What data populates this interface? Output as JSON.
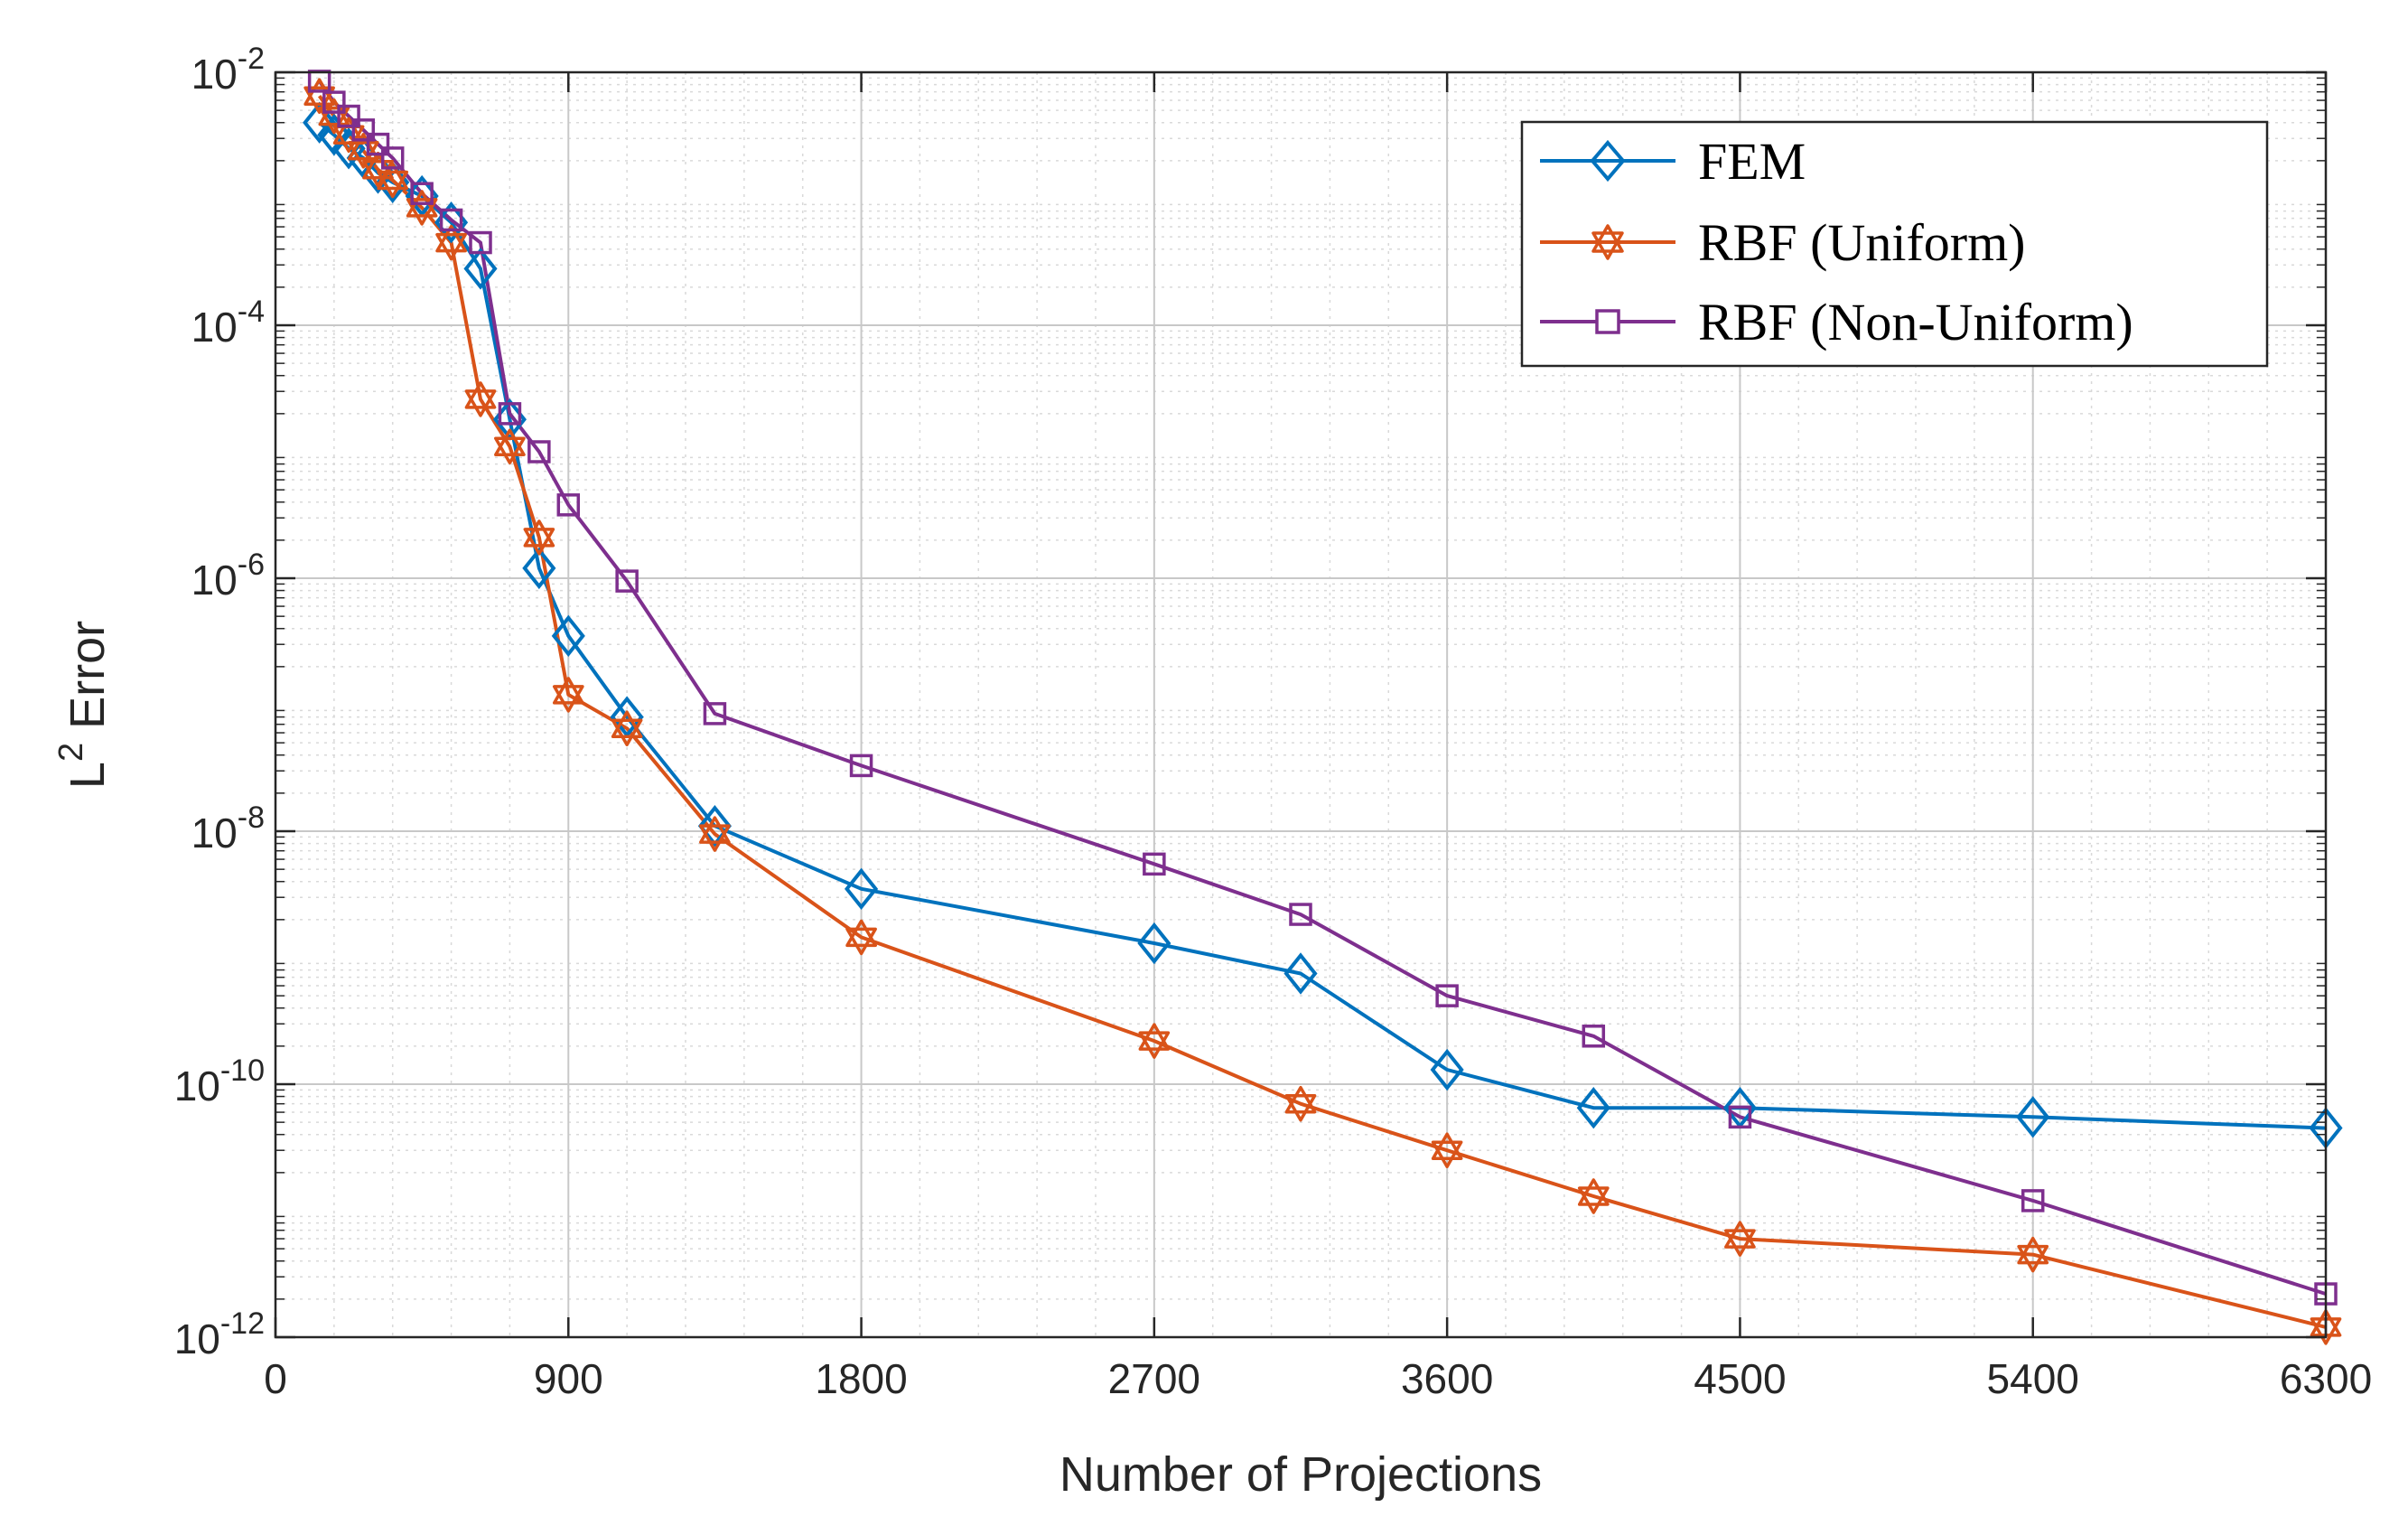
{
  "chart_data": {
    "type": "line",
    "title": "",
    "xlabel": "Number of Projections",
    "ylabel_base": "L",
    "ylabel_sup": "2",
    "ylabel_rest": " Error",
    "xscale": "linear",
    "yscale": "log",
    "xlim": [
      0,
      6300
    ],
    "ylim": [
      1e-12,
      0.01
    ],
    "xticks": [
      0,
      900,
      1800,
      2700,
      3600,
      4500,
      5400,
      6300
    ],
    "xtick_labels": [
      "0",
      "900",
      "1800",
      "2700",
      "3600",
      "4500",
      "5400",
      "6300"
    ],
    "yticks": [
      -12,
      -10,
      -8,
      -6,
      -4,
      -2
    ],
    "ytick_base": "10",
    "ytick_exponents": [
      "-12",
      "-10",
      "-8",
      "-6",
      "-4",
      "-2"
    ],
    "grid": true,
    "minor_grid": true,
    "legend_position": "top-right",
    "series": [
      {
        "name": "FEM",
        "color": "#0072BD",
        "marker": "diamond",
        "x": [
          135,
          180,
          225,
          270,
          315,
          360,
          450,
          540,
          630,
          720,
          810,
          900,
          1080,
          1350,
          1800,
          2700,
          3150,
          3600,
          4050,
          4500,
          5400,
          6300
        ],
        "y": [
          0.004,
          0.0032,
          0.0025,
          0.0021,
          0.0016,
          0.00135,
          0.00105,
          0.00065,
          0.00028,
          1.8e-05,
          1.2e-06,
          3.5e-07,
          8e-08,
          1.1e-08,
          3.5e-09,
          1.3e-09,
          7.5e-10,
          1.3e-10,
          6.5e-11,
          6.5e-11,
          5.5e-11,
          4.5e-11
        ]
      },
      {
        "name": "RBF (Uniform)",
        "color": "#D95319",
        "marker": "hexagram",
        "x": [
          135,
          180,
          225,
          270,
          315,
          360,
          450,
          540,
          630,
          720,
          810,
          900,
          1080,
          1350,
          1800,
          2700,
          3150,
          3600,
          4050,
          4500,
          5400,
          6300
        ],
        "y": [
          0.0065,
          0.0045,
          0.0032,
          0.0024,
          0.0017,
          0.0014,
          0.00085,
          0.00045,
          2.6e-05,
          1.1e-05,
          2.1e-06,
          1.2e-07,
          6.5e-08,
          9.5e-09,
          1.45e-09,
          2.2e-10,
          7e-11,
          3e-11,
          1.3e-11,
          6e-12,
          4.5e-12,
          1.2e-12
        ]
      },
      {
        "name": "RBF (Non-Uniform)",
        "color": "#7E2F8E",
        "marker": "square",
        "x": [
          135,
          180,
          225,
          270,
          315,
          360,
          450,
          540,
          630,
          720,
          810,
          900,
          1080,
          1350,
          1800,
          2700,
          3150,
          3600,
          4050,
          4500,
          5400,
          6300
        ],
        "y": [
          0.0085,
          0.0058,
          0.0045,
          0.0035,
          0.0027,
          0.0021,
          0.0011,
          0.00068,
          0.00045,
          2e-05,
          1e-05,
          3.8e-06,
          9.5e-07,
          8.5e-08,
          3.3e-08,
          5.5e-09,
          2.2e-09,
          5e-10,
          2.4e-10,
          5.5e-11,
          1.2e-11,
          2.2e-12
        ]
      }
    ]
  }
}
